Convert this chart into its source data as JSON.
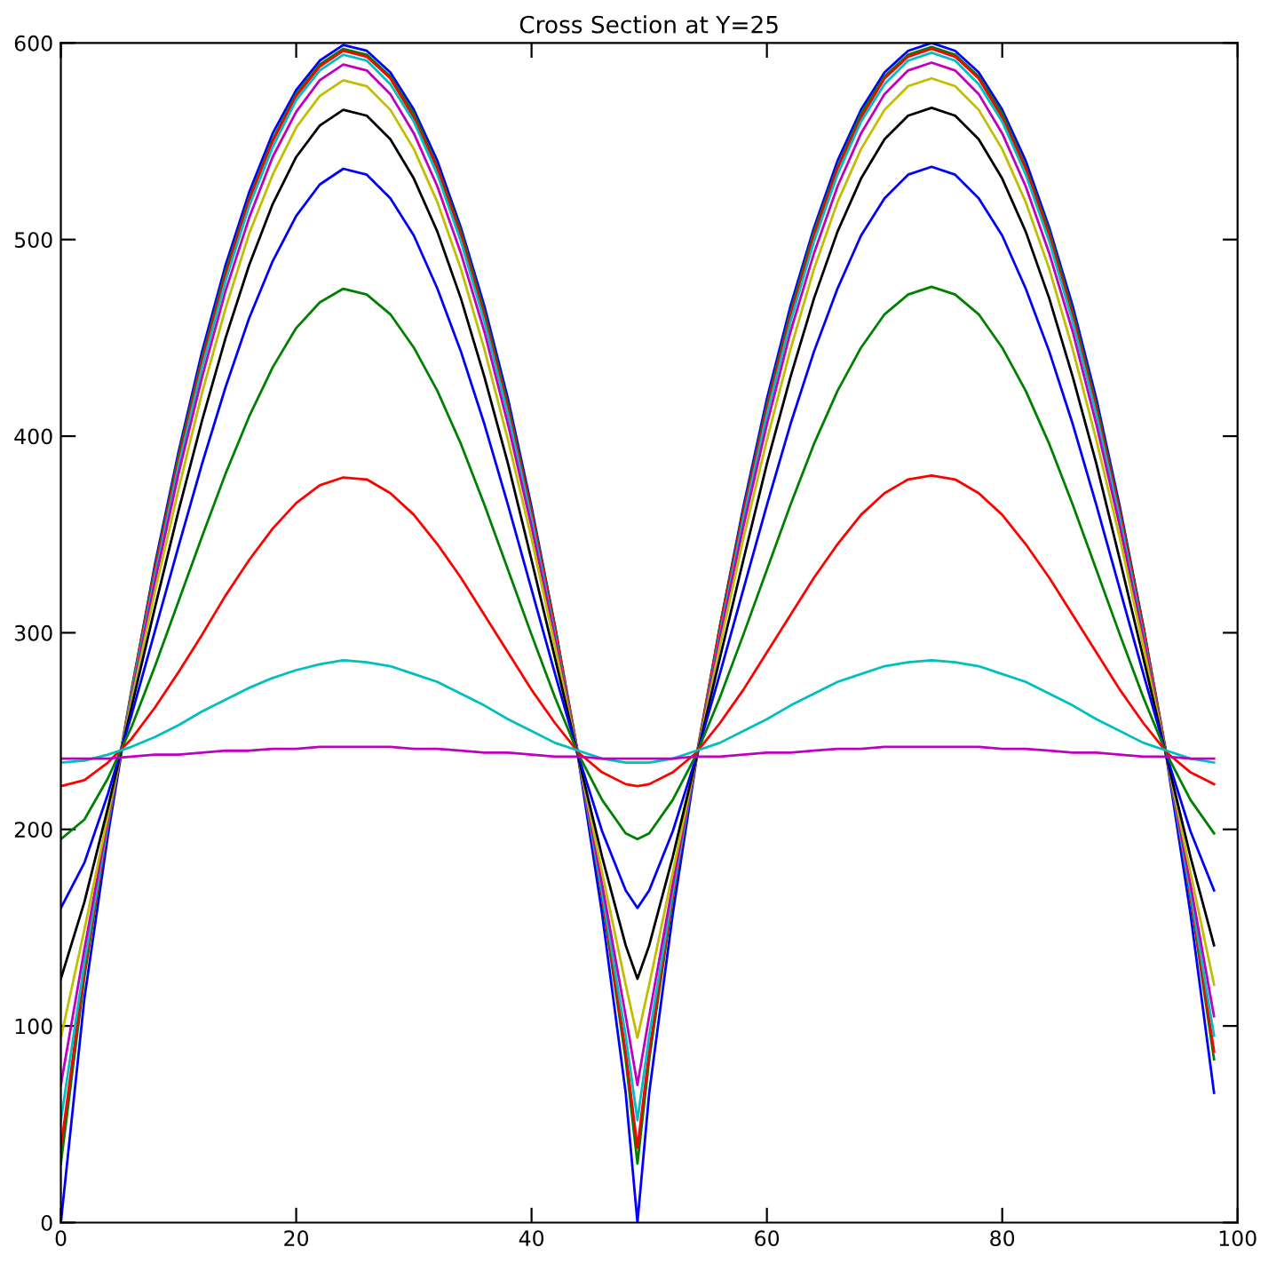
{
  "chart_data": {
    "type": "line",
    "title": "Cross Section at Y=25",
    "x": [
      0,
      2,
      4,
      6,
      8,
      10,
      12,
      14,
      16,
      18,
      20,
      22,
      24,
      26,
      28,
      30,
      32,
      34,
      36,
      38,
      40,
      42,
      44,
      46,
      48,
      49,
      50,
      52,
      54,
      56,
      58,
      60,
      62,
      64,
      66,
      68,
      70,
      72,
      74,
      76,
      78,
      80,
      82,
      84,
      86,
      88,
      90,
      92,
      94,
      96,
      98
    ],
    "xlim": [
      0,
      100
    ],
    "xticks": [
      0,
      20,
      40,
      60,
      80,
      100
    ],
    "ylim": [
      0,
      600
    ],
    "yticks": [
      0,
      100,
      200,
      300,
      400,
      500,
      600
    ],
    "grid": false,
    "marker": "none",
    "line_style": "solid",
    "series": [
      {
        "color": "#0000ff",
        "values": [
          0,
          114,
          197,
          270,
          335,
          392,
          443,
          487,
          524,
          554,
          576,
          591,
          599,
          596,
          585,
          566,
          540,
          506,
          466,
          419,
          364,
          303,
          235,
          157,
          66,
          0,
          66,
          157,
          235,
          303,
          364,
          419,
          466,
          506,
          540,
          566,
          585,
          596,
          600,
          596,
          585,
          566,
          540,
          506,
          466,
          419,
          364,
          303,
          235,
          157,
          66
        ]
      },
      {
        "color": "#008000",
        "values": [
          30,
          125,
          202,
          271,
          333,
          390,
          440,
          484,
          521,
          551,
          574,
          589,
          597,
          594,
          583,
          564,
          537,
          504,
          463,
          416,
          362,
          303,
          237,
          165,
          83,
          30,
          83,
          165,
          237,
          303,
          362,
          416,
          463,
          504,
          537,
          564,
          583,
          594,
          598,
          594,
          583,
          564,
          537,
          504,
          463,
          416,
          362,
          303,
          237,
          165,
          83
        ]
      },
      {
        "color": "#ff0000",
        "values": [
          38,
          128,
          202,
          270,
          332,
          388,
          438,
          482,
          520,
          550,
          573,
          588,
          596,
          593,
          582,
          562,
          536,
          502,
          461,
          414,
          361,
          302,
          237,
          166,
          87,
          38,
          87,
          166,
          237,
          302,
          361,
          414,
          461,
          502,
          536,
          562,
          582,
          593,
          597,
          593,
          582,
          562,
          536,
          502,
          461,
          414,
          361,
          302,
          237,
          166,
          87
        ]
      },
      {
        "color": "#00bfbf",
        "values": [
          52,
          132,
          203,
          269,
          329,
          385,
          435,
          479,
          517,
          547,
          571,
          586,
          594,
          591,
          579,
          560,
          533,
          499,
          458,
          411,
          358,
          299,
          236,
          168,
          95,
          52,
          95,
          168,
          236,
          299,
          358,
          411,
          458,
          499,
          533,
          560,
          579,
          591,
          595,
          591,
          579,
          560,
          533,
          499,
          458,
          411,
          358,
          299,
          236,
          168,
          95
        ]
      },
      {
        "color": "#bf00bf",
        "values": [
          70,
          139,
          205,
          267,
          326,
          381,
          430,
          474,
          511,
          542,
          565,
          581,
          589,
          586,
          574,
          554,
          527,
          493,
          453,
          406,
          354,
          297,
          236,
          172,
          105,
          70,
          105,
          172,
          236,
          297,
          354,
          406,
          453,
          493,
          527,
          554,
          574,
          586,
          590,
          586,
          574,
          554,
          527,
          493,
          453,
          406,
          354,
          297,
          236,
          172,
          105
        ]
      },
      {
        "color": "#bfbf00",
        "values": [
          94,
          149,
          207,
          265,
          321,
          373,
          422,
          465,
          503,
          533,
          557,
          573,
          581,
          578,
          566,
          546,
          519,
          485,
          444,
          398,
          348,
          293,
          236,
          178,
          121,
          94,
          121,
          178,
          236,
          293,
          348,
          398,
          444,
          485,
          519,
          546,
          566,
          578,
          582,
          578,
          566,
          546,
          519,
          485,
          444,
          398,
          348,
          293,
          236,
          178,
          121
        ]
      },
      {
        "color": "#000000",
        "values": [
          124,
          163,
          211,
          262,
          313,
          362,
          408,
          450,
          487,
          518,
          542,
          558,
          566,
          563,
          551,
          531,
          504,
          470,
          430,
          386,
          337,
          287,
          236,
          186,
          141,
          124,
          141,
          186,
          236,
          287,
          337,
          386,
          430,
          470,
          504,
          531,
          551,
          563,
          567,
          563,
          551,
          531,
          504,
          470,
          430,
          386,
          337,
          287,
          236,
          186,
          141
        ]
      },
      {
        "color": "#0000ff",
        "values": [
          160,
          183,
          218,
          258,
          301,
          344,
          386,
          425,
          460,
          489,
          512,
          528,
          536,
          533,
          521,
          502,
          475,
          443,
          406,
          365,
          322,
          279,
          237,
          199,
          169,
          160,
          169,
          199,
          237,
          279,
          322,
          365,
          406,
          443,
          475,
          502,
          521,
          533,
          537,
          533,
          521,
          502,
          475,
          443,
          406,
          365,
          322,
          279,
          237,
          199,
          169
        ]
      },
      {
        "color": "#008000",
        "values": [
          195,
          205,
          226,
          252,
          283,
          316,
          349,
          381,
          410,
          435,
          455,
          468,
          475,
          472,
          462,
          445,
          423,
          396,
          365,
          332,
          299,
          267,
          238,
          215,
          198,
          195,
          198,
          215,
          238,
          267,
          299,
          332,
          365,
          396,
          423,
          445,
          462,
          472,
          476,
          472,
          462,
          445,
          423,
          396,
          365,
          332,
          299,
          267,
          238,
          215,
          198
        ]
      },
      {
        "color": "#ff0000",
        "values": [
          222,
          225,
          234,
          246,
          262,
          280,
          299,
          319,
          337,
          353,
          366,
          375,
          379,
          378,
          371,
          360,
          345,
          328,
          309,
          290,
          271,
          254,
          239,
          229,
          223,
          222,
          223,
          229,
          239,
          254,
          271,
          290,
          309,
          328,
          345,
          360,
          371,
          378,
          380,
          378,
          371,
          360,
          345,
          328,
          309,
          290,
          271,
          254,
          239,
          229,
          223
        ]
      },
      {
        "color": "#00bfbf",
        "values": [
          234,
          235,
          238,
          242,
          247,
          253,
          260,
          266,
          272,
          277,
          281,
          284,
          286,
          285,
          283,
          279,
          275,
          269,
          263,
          256,
          250,
          244,
          240,
          236,
          234,
          234,
          234,
          236,
          240,
          244,
          250,
          256,
          263,
          269,
          275,
          279,
          283,
          285,
          286,
          285,
          283,
          279,
          275,
          269,
          263,
          256,
          250,
          244,
          240,
          236,
          234
        ]
      },
      {
        "color": "#bf00bf",
        "values": [
          236,
          236,
          236,
          237,
          238,
          238,
          239,
          240,
          240,
          241,
          241,
          242,
          242,
          242,
          242,
          241,
          241,
          240,
          239,
          239,
          238,
          237,
          237,
          236,
          236,
          236,
          236,
          236,
          237,
          237,
          238,
          239,
          239,
          240,
          241,
          241,
          242,
          242,
          242,
          242,
          242,
          241,
          241,
          240,
          239,
          239,
          238,
          237,
          237,
          236,
          236
        ]
      }
    ]
  }
}
